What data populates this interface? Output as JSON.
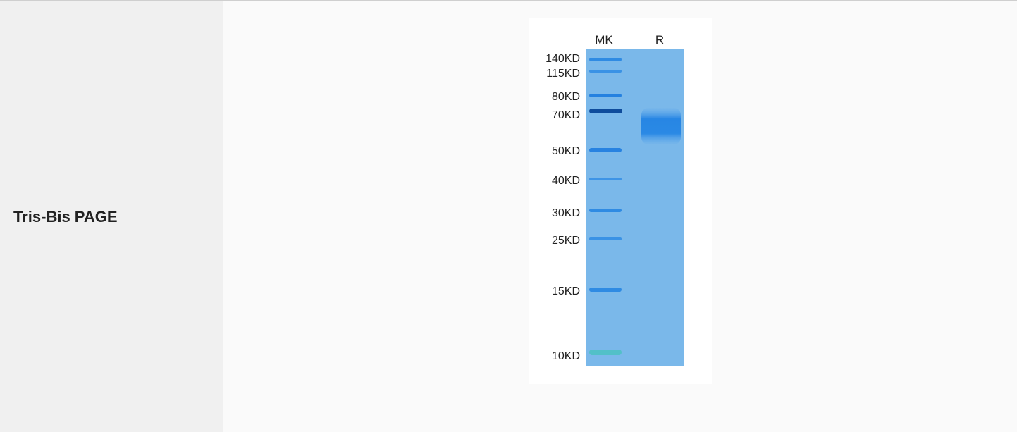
{
  "row_label": "Tris-Bis PAGE",
  "gel": {
    "lane_labels": [
      "MK",
      "R"
    ],
    "marker_labels": [
      "140KD",
      "115KD",
      "80KD",
      "70KD",
      "50KD",
      "40KD",
      "30KD",
      "25KD",
      "15KD",
      "10KD"
    ],
    "gel_color": "#7bb9ea",
    "band_color": "#1f7fe0"
  }
}
